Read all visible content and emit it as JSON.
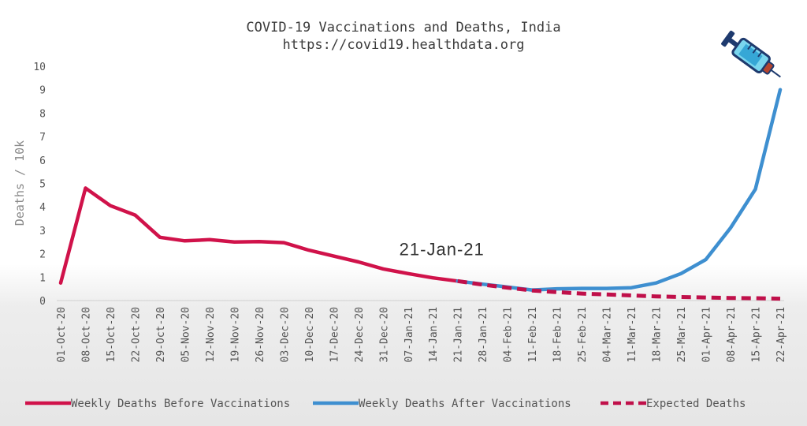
{
  "chart_data": {
    "type": "line",
    "title": "COVID-19 Vaccinations and Deaths, India",
    "subtitle": "https://covid19.healthdata.org",
    "ylabel": "Deaths / 10k",
    "xlabel": "",
    "ylim": [
      0,
      10
    ],
    "yticks": [
      "0",
      "1",
      "2",
      "3",
      "4",
      "5",
      "6",
      "7",
      "8",
      "9",
      "10"
    ],
    "categories": [
      "01-Oct-20",
      "08-Oct-20",
      "15-Oct-20",
      "22-Oct-20",
      "29-Oct-20",
      "05-Nov-20",
      "12-Nov-20",
      "19-Nov-20",
      "26-Nov-20",
      "03-Dec-20",
      "10-Dec-20",
      "17-Dec-20",
      "24-Dec-20",
      "31-Dec-20",
      "07-Jan-21",
      "14-Jan-21",
      "21-Jan-21",
      "28-Jan-21",
      "04-Feb-21",
      "11-Feb-21",
      "18-Feb-21",
      "25-Feb-21",
      "04-Mar-21",
      "11-Mar-21",
      "18-Mar-21",
      "25-Mar-21",
      "01-Apr-21",
      "08-Apr-21",
      "15-Apr-21",
      "22-Apr-21"
    ],
    "series": [
      {
        "name": "Weekly Deaths Before Vaccinations",
        "color": "#d0124a",
        "style": "solid",
        "values": [
          0.75,
          4.8,
          4.05,
          3.65,
          2.7,
          2.55,
          2.6,
          2.5,
          2.52,
          2.47,
          2.15,
          1.9,
          1.65,
          1.35,
          1.15,
          0.97,
          0.83,
          null,
          null,
          null,
          null,
          null,
          null,
          null,
          null,
          null,
          null,
          null,
          null,
          null
        ]
      },
      {
        "name": "Weekly Deaths After Vaccinations",
        "color": "#3e8fd0",
        "style": "solid",
        "values": [
          null,
          null,
          null,
          null,
          null,
          null,
          null,
          null,
          null,
          null,
          null,
          null,
          null,
          null,
          null,
          null,
          0.83,
          0.7,
          0.58,
          0.45,
          0.5,
          0.52,
          0.52,
          0.55,
          0.75,
          1.15,
          1.75,
          3.1,
          4.75,
          9.0
        ]
      },
      {
        "name": "Expected Deaths",
        "color": "#c0104a",
        "style": "dashed",
        "values": [
          null,
          null,
          null,
          null,
          null,
          null,
          null,
          null,
          null,
          null,
          null,
          null,
          null,
          null,
          null,
          null,
          0.83,
          0.68,
          0.55,
          0.43,
          0.36,
          0.3,
          0.26,
          0.22,
          0.18,
          0.15,
          0.13,
          0.11,
          0.1,
          0.08
        ]
      }
    ],
    "annotations": [
      {
        "text": "21-Jan-21",
        "x": "21-Jan-21",
        "y": 2.2
      }
    ],
    "grid": false,
    "legend_position": "bottom",
    "icon": "syringe-icon"
  }
}
